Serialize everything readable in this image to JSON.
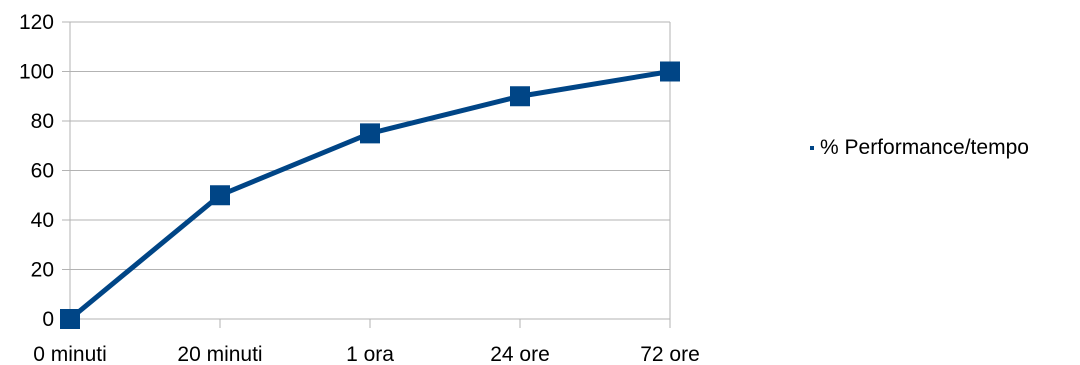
{
  "chart_data": {
    "type": "line",
    "categories": [
      "0 minuti",
      "20 minuti",
      "1 ora",
      "24 ore",
      "72 ore"
    ],
    "series": [
      {
        "name": "% Performance/tempo",
        "values": [
          0,
          50,
          75,
          90,
          100
        ],
        "color": "#004586",
        "marker": "square"
      }
    ],
    "ylim": [
      0,
      120
    ],
    "yticks": [
      0,
      20,
      40,
      60,
      80,
      100,
      120
    ],
    "grid": true,
    "legend_position": "right"
  }
}
